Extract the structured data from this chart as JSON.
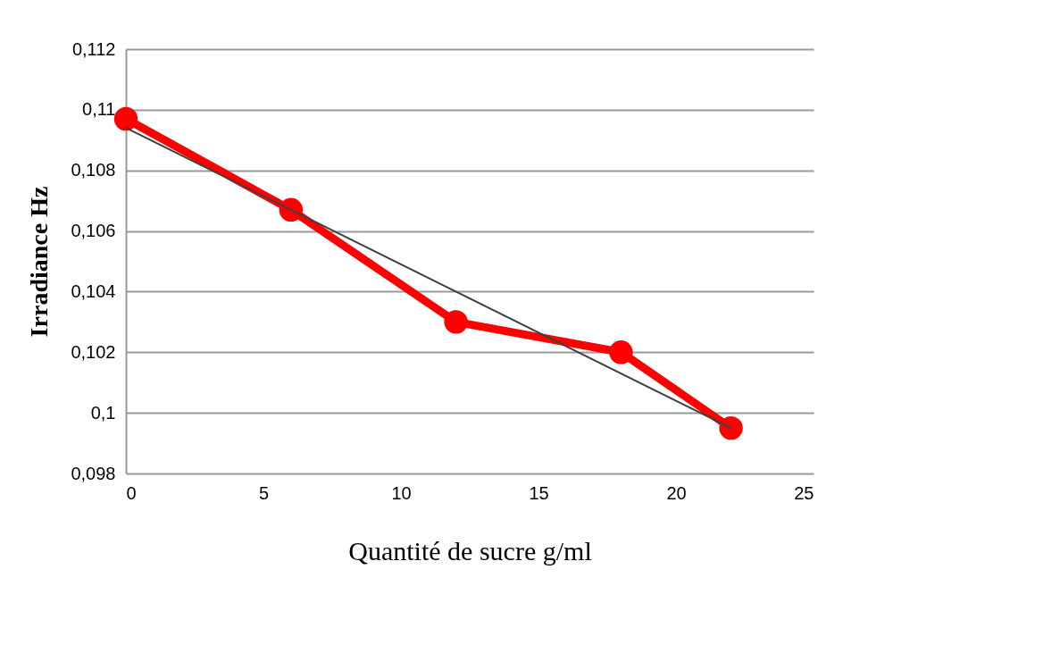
{
  "chart_data": {
    "type": "line",
    "xlabel": "Quantité de sucre g/ml",
    "ylabel": "Irradiance Hz",
    "x": [
      0,
      6,
      12,
      18,
      22
    ],
    "series": [
      {
        "color": "#ff0000",
        "values": [
          0.1097,
          0.1067,
          0.103,
          0.102,
          0.0995
        ]
      },
      {
        "type": "line",
        "color": "#404040",
        "x": [
          0,
          22
        ],
        "values": [
          0.1094,
          0.0995
        ],
        "marker": "none"
      }
    ],
    "xlim": [
      0,
      25
    ],
    "xticks": [
      0,
      5,
      10,
      15,
      20,
      25
    ],
    "ylim": [
      0.098,
      0.112
    ],
    "yticks": [
      {
        "value": 0.098,
        "label": "0,098"
      },
      {
        "value": 0.1,
        "label": "0,1"
      },
      {
        "value": 0.102,
        "label": "0,102"
      },
      {
        "value": 0.104,
        "label": "0,104"
      },
      {
        "value": 0.106,
        "label": "0,106"
      },
      {
        "value": 0.108,
        "label": "0,108"
      },
      {
        "value": 0.11,
        "label": "0,11"
      },
      {
        "value": 0.112,
        "label": "0,112"
      }
    ],
    "grid": "y",
    "marker": "circle",
    "line_style": "solid"
  }
}
